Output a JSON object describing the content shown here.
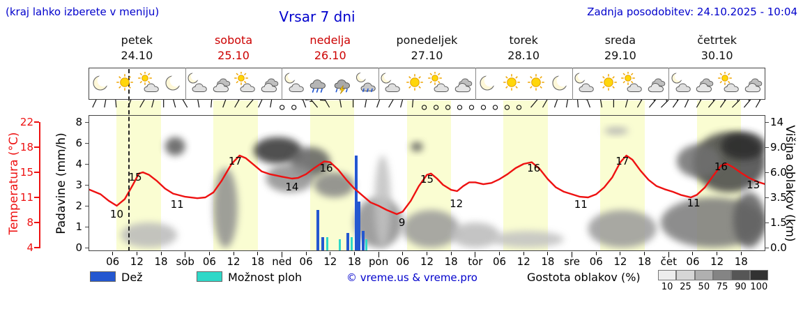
{
  "header": {
    "hint": "(kraj lahko izberete v meniju)",
    "title": "Vrsar 7 dni",
    "updated": "Zadnja posodobitev: 24.10.2025 - 10:04"
  },
  "colors": {
    "accent_blue": "#0000cc",
    "weekend_red": "#cc0000",
    "temp_red": "#ee1111",
    "rain_blue": "#2457d0",
    "shower_cyan": "#2fd8c8",
    "day_band": "#fafdd2",
    "axis_dark": "#444444"
  },
  "axes": {
    "left_temp": {
      "title": "Temperatura (°C)",
      "ticks": [
        22,
        18,
        15,
        11,
        8,
        4
      ]
    },
    "left_precip": {
      "title": "Padavine (mm/h)",
      "ticks": [
        8,
        6,
        4,
        3,
        2,
        1,
        0
      ]
    },
    "right_cloud": {
      "title": "Višina oblakov (km)",
      "tick_labels": [
        "14",
        "9.0",
        "6.0",
        "3.5",
        "1.5",
        "0.0"
      ],
      "tick_values": [
        14,
        9,
        6,
        3.5,
        1.5,
        0
      ]
    }
  },
  "days": [
    {
      "name": "petek",
      "date": "24.10",
      "weekend": false,
      "icons": [
        "moon",
        "sun",
        "sun-cloud",
        "moon"
      ]
    },
    {
      "name": "sobota",
      "date": "25.10",
      "weekend": true,
      "icons": [
        "moon-cloud",
        "cloud",
        "sun-cloud",
        "cloud"
      ]
    },
    {
      "name": "nedelja",
      "date": "26.10",
      "weekend": true,
      "icons": [
        "moon-cloud",
        "rain",
        "storm",
        "rain-moon"
      ]
    },
    {
      "name": "ponedeljek",
      "date": "27.10",
      "weekend": false,
      "icons": [
        "moon-cloud",
        "sun",
        "sun-cloud",
        "cloud"
      ]
    },
    {
      "name": "torek",
      "date": "28.10",
      "weekend": false,
      "icons": [
        "moon",
        "sun",
        "sun",
        "moon"
      ]
    },
    {
      "name": "sreda",
      "date": "29.10",
      "weekend": false,
      "icons": [
        "moon-cloud",
        "sun",
        "sun-cloud",
        "cloud"
      ]
    },
    {
      "name": "četrtek",
      "date": "30.10",
      "weekend": false,
      "icons": [
        "moon-cloud",
        "cloud",
        "sun-cloud",
        "cloud"
      ]
    }
  ],
  "x_axis": {
    "hour_labels": [
      "06",
      "12",
      "18"
    ],
    "day_abbrevs": [
      "sob",
      "ned",
      "pon",
      "tor",
      "sre",
      "čet"
    ]
  },
  "legend": {
    "rain": "Dež",
    "showers": "Možnost ploh",
    "credit": "© vreme.us & vreme.pro",
    "cloud_density": "Gostota oblakov (%)",
    "cloud_scale": [
      "10",
      "25",
      "50",
      "75",
      "90",
      "100"
    ],
    "cloud_scale_colors": [
      "#ededed",
      "#d6d6d6",
      "#b0b0b0",
      "#848484",
      "#565656",
      "#323232"
    ]
  },
  "chart_data": {
    "type": "line",
    "title": "Vrsar 7 dni",
    "x_unit": "hours from petek 00:00 over 7 days (168 h total)",
    "now_hour": 10.07,
    "daylight_hours": [
      7,
      18
    ],
    "temp_axis_c": [
      4,
      22
    ],
    "precip_axis_mm": [
      0,
      8
    ],
    "cloud_height_axis_km": [
      0,
      14
    ],
    "series": [
      {
        "name": "Temperatura (°C)",
        "type": "line",
        "color": "#ee1111",
        "points": [
          [
            0,
            12.3
          ],
          [
            3,
            11.5
          ],
          [
            5,
            10.6
          ],
          [
            7,
            10
          ],
          [
            9,
            10.8
          ],
          [
            11,
            13
          ],
          [
            12.5,
            14.8
          ],
          [
            13.5,
            15
          ],
          [
            15,
            14.6
          ],
          [
            17,
            13.6
          ],
          [
            19,
            12.4
          ],
          [
            21,
            11.6
          ],
          [
            24,
            11.1
          ],
          [
            27,
            10.9
          ],
          [
            29,
            11
          ],
          [
            31,
            11.8
          ],
          [
            33,
            13.6
          ],
          [
            35.5,
            16
          ],
          [
            37.5,
            17
          ],
          [
            39,
            16.7
          ],
          [
            41,
            15.9
          ],
          [
            43,
            15.1
          ],
          [
            45,
            14.7
          ],
          [
            48,
            14.3
          ],
          [
            50.5,
            14
          ],
          [
            52,
            14.1
          ],
          [
            54,
            14.7
          ],
          [
            56,
            15.5
          ],
          [
            58.5,
            16.3
          ],
          [
            60,
            16.2
          ],
          [
            62,
            15.3
          ],
          [
            64,
            13.8
          ],
          [
            66,
            12.4
          ],
          [
            68,
            11.3
          ],
          [
            70,
            10.4
          ],
          [
            72,
            10
          ],
          [
            74,
            9.5
          ],
          [
            76.5,
            9
          ],
          [
            78,
            9.3
          ],
          [
            80,
            10.6
          ],
          [
            82,
            12.8
          ],
          [
            84,
            14.6
          ],
          [
            85,
            14.8
          ],
          [
            86.5,
            14
          ],
          [
            88,
            13
          ],
          [
            90,
            12.2
          ],
          [
            91.5,
            12
          ],
          [
            93,
            12.8
          ],
          [
            94.5,
            13.4
          ],
          [
            96,
            13.4
          ],
          [
            98,
            13.1
          ],
          [
            100,
            13.3
          ],
          [
            102,
            13.9
          ],
          [
            104,
            14.7
          ],
          [
            106,
            15.5
          ],
          [
            108,
            16
          ],
          [
            110,
            16.2
          ],
          [
            112,
            15.4
          ],
          [
            114,
            13.9
          ],
          [
            116,
            12.6
          ],
          [
            118,
            11.9
          ],
          [
            120,
            11.5
          ],
          [
            122,
            11.1
          ],
          [
            124,
            11
          ],
          [
            126,
            11.5
          ],
          [
            128,
            12.6
          ],
          [
            130,
            14.2
          ],
          [
            132,
            16.2
          ],
          [
            133.5,
            17
          ],
          [
            135,
            16.5
          ],
          [
            137,
            15.2
          ],
          [
            139,
            13.8
          ],
          [
            141,
            12.8
          ],
          [
            143,
            12.3
          ],
          [
            145,
            11.9
          ],
          [
            147,
            11.4
          ],
          [
            149.5,
            11
          ],
          [
            151,
            11.4
          ],
          [
            153,
            12.6
          ],
          [
            155,
            14.4
          ],
          [
            157,
            15.8
          ],
          [
            158.5,
            16
          ],
          [
            160,
            15.6
          ],
          [
            162,
            14.9
          ],
          [
            164,
            14.1
          ],
          [
            166,
            13.5
          ],
          [
            168,
            13.1
          ]
        ]
      },
      {
        "name": "Dež (mm/h)",
        "type": "bar",
        "color": "#2457d0",
        "points": [
          [
            57.0,
            1.8
          ],
          [
            58.1,
            0.5
          ],
          [
            64.3,
            0.7
          ],
          [
            66.4,
            4.8
          ],
          [
            67.2,
            2.2
          ],
          [
            68.1,
            0.8
          ]
        ]
      },
      {
        "name": "Možnost ploh (mm/h)",
        "type": "bar",
        "color": "#2fd8c8",
        "points": [
          [
            59.2,
            0.5
          ],
          [
            62.4,
            0.4
          ],
          [
            65.3,
            0.5
          ],
          [
            69.0,
            0.4
          ]
        ]
      }
    ],
    "temp_point_labels": [
      [
        7,
        10,
        12
      ],
      [
        11.6,
        15,
        7
      ],
      [
        22,
        11,
        10
      ],
      [
        36.4,
        17,
        8
      ],
      [
        50.5,
        14,
        12
      ],
      [
        59,
        16,
        6
      ],
      [
        77.8,
        9,
        12
      ],
      [
        84,
        15,
        10
      ],
      [
        91.3,
        12,
        18
      ],
      [
        110.5,
        16,
        6
      ],
      [
        122.2,
        11,
        10
      ],
      [
        132.5,
        17,
        8
      ],
      [
        150.2,
        11,
        8
      ],
      [
        157,
        16,
        4
      ],
      [
        165,
        13,
        0
      ]
    ],
    "cloud_cover_blobs": [
      [
        8,
        22,
        0,
        1.5,
        25
      ],
      [
        19,
        24,
        8,
        11,
        70
      ],
      [
        31,
        37,
        0,
        6.5,
        45
      ],
      [
        41,
        53,
        7,
        11,
        88
      ],
      [
        50,
        60,
        5.5,
        9,
        68
      ],
      [
        44,
        56,
        4,
        7,
        45
      ],
      [
        56,
        66,
        3.5,
        6,
        50
      ],
      [
        66,
        78,
        0,
        3.5,
        45
      ],
      [
        71,
        75,
        0,
        8,
        22
      ],
      [
        80,
        83,
        8.5,
        10,
        70
      ],
      [
        78,
        92,
        0,
        2.5,
        40
      ],
      [
        90,
        102,
        0,
        1.5,
        25
      ],
      [
        100,
        118,
        0,
        1,
        22
      ],
      [
        128,
        134,
        11.5,
        13,
        30
      ],
      [
        124,
        141,
        0,
        2.5,
        40
      ],
      [
        142,
        168,
        0,
        3.5,
        55
      ],
      [
        150,
        168,
        4,
        12,
        80
      ],
      [
        157,
        168,
        7.5,
        12,
        92
      ],
      [
        146,
        157,
        5.5,
        9.5,
        60
      ],
      [
        160,
        168,
        0,
        4,
        68
      ]
    ],
    "wind_barbs": {
      "start_hour": 1.0,
      "step_hours": 2.94,
      "entries": [
        [
          -65,
          1
        ],
        [
          -80,
          2
        ],
        [
          -95,
          1
        ],
        [
          -70,
          2
        ],
        [
          -60,
          1
        ],
        [
          -75,
          1
        ],
        [
          -90,
          2
        ],
        [
          -105,
          1
        ],
        [
          -120,
          1
        ],
        [
          -100,
          2
        ],
        [
          -85,
          1
        ],
        [
          -70,
          1
        ],
        [
          -60,
          2
        ],
        [
          -50,
          1
        ],
        [
          -65,
          1
        ],
        [
          -80,
          2
        ],
        [
          0,
          0
        ],
        [
          0,
          0
        ],
        [
          -110,
          2
        ],
        [
          -130,
          2
        ],
        [
          -120,
          3
        ],
        [
          -100,
          2
        ],
        [
          -90,
          2
        ],
        [
          -80,
          1
        ],
        [
          -70,
          1
        ],
        [
          -60,
          1
        ],
        [
          -75,
          2
        ],
        [
          -85,
          1
        ],
        [
          0,
          0
        ],
        [
          0,
          0
        ],
        [
          0,
          0
        ],
        [
          0,
          0
        ],
        [
          0,
          0
        ],
        [
          0,
          0
        ],
        [
          0,
          0
        ],
        [
          0,
          0
        ],
        [
          0,
          0
        ],
        [
          -50,
          1
        ],
        [
          -60,
          1
        ],
        [
          -70,
          1
        ],
        [
          -80,
          2
        ],
        [
          -95,
          1
        ],
        [
          -110,
          2
        ],
        [
          -100,
          1
        ],
        [
          -90,
          2
        ],
        [
          -75,
          1
        ],
        [
          -60,
          2
        ],
        [
          -50,
          2
        ],
        [
          -45,
          2
        ],
        [
          -55,
          3
        ],
        [
          -65,
          2
        ],
        [
          -60,
          3
        ],
        [
          -50,
          2
        ],
        [
          -55,
          2
        ],
        [
          -45,
          3
        ],
        [
          -50,
          2
        ],
        [
          -60,
          2
        ]
      ]
    }
  }
}
